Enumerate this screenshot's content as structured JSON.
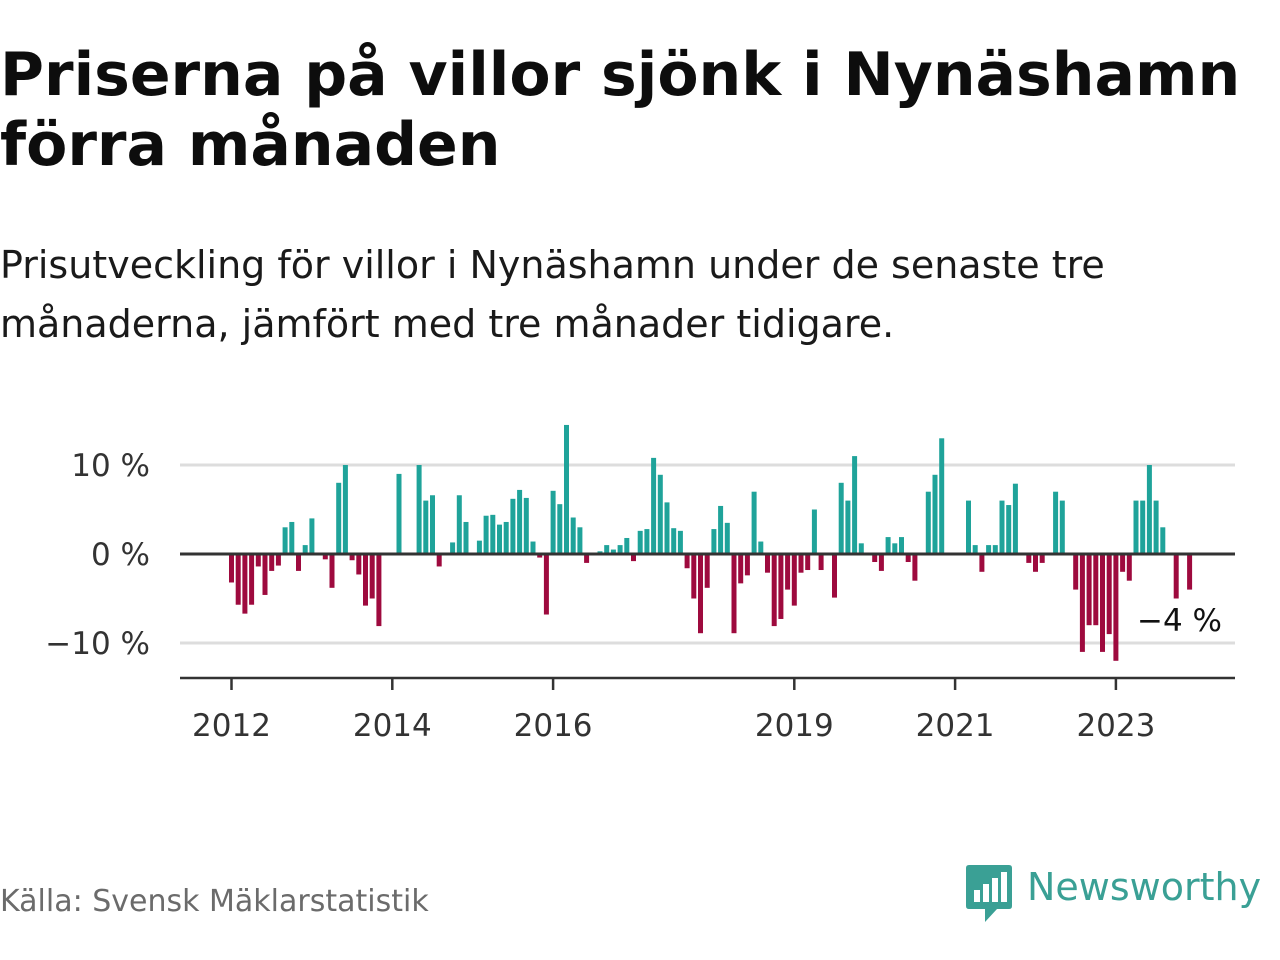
{
  "title": "Priserna på villor sjönk i Nynäshamn förra månaden",
  "subtitle": "Prisutveckling för villor i Nynäshamn under de senaste tre månaderna, jämfört med tre månader tidigare.",
  "source": "Källa: Svensk Mäklarstatistik",
  "brand": {
    "name": "Newsworthy",
    "logo_icon": "newsworthy-bar-chart-logo-icon"
  },
  "colors": {
    "positive": "#1fa39a",
    "negative": "#9e0a3e",
    "grid": "#dddddd",
    "axis": "#333333",
    "brand": "#3aa095"
  },
  "chart_data": {
    "type": "bar",
    "unit": "%",
    "x_start": "2012-01",
    "y_ticks": [
      {
        "value": 10,
        "label": "10 %"
      },
      {
        "value": 0,
        "label": "0 %"
      },
      {
        "value": -10,
        "label": "−10 %"
      }
    ],
    "ylim": [
      -14,
      14.5
    ],
    "x_ticks": [
      {
        "label": "2012",
        "index": 0
      },
      {
        "label": "2014",
        "index": 24
      },
      {
        "label": "2016",
        "index": 48
      },
      {
        "label": "2019",
        "index": 84
      },
      {
        "label": "2021",
        "index": 108
      },
      {
        "label": "2023",
        "index": 132
      }
    ],
    "last_label": "−4 %",
    "values": [
      -3.2,
      -5.7,
      -6.7,
      -5.7,
      -1.4,
      -4.6,
      -1.9,
      -1.3,
      3,
      3.6,
      -1.9,
      1,
      4,
      0,
      -0.6,
      -3.8,
      8,
      10,
      -0.7,
      -2.3,
      -5.8,
      -5,
      -8.1,
      0,
      0,
      9,
      0,
      0,
      10,
      6,
      6.6,
      -1.4,
      0,
      1.3,
      6.6,
      3.6,
      0,
      1.5,
      4.3,
      4.4,
      3.3,
      3.6,
      6.2,
      7.2,
      6.3,
      1.4,
      -0.4,
      -6.8,
      7.1,
      5.6,
      14.5,
      4.1,
      3,
      -1,
      0,
      0.3,
      1,
      0.5,
      1,
      1.8,
      -0.8,
      2.6,
      2.8,
      10.8,
      8.9,
      5.8,
      2.9,
      2.6,
      -1.6,
      -5,
      -8.9,
      -3.8,
      2.8,
      5.4,
      3.5,
      -8.9,
      -3.3,
      -2.4,
      7,
      1.4,
      -2.1,
      -8.1,
      -7.3,
      -4,
      -5.8,
      -2.1,
      -1.8,
      5,
      -1.8,
      0,
      -4.9,
      8,
      6,
      11,
      1.2,
      0,
      -0.9,
      -1.9,
      1.9,
      1.2,
      1.9,
      -0.9,
      -3,
      0,
      7,
      8.9,
      13,
      0,
      0,
      0,
      6,
      1,
      -2,
      1,
      1,
      6,
      5.5,
      7.9,
      0,
      -1,
      -2,
      -1,
      0,
      7,
      6,
      0,
      -4,
      -11,
      -8,
      -8,
      -11,
      -9,
      -12,
      -2,
      -3,
      6,
      6,
      10,
      6,
      3,
      0,
      -5,
      0,
      -4
    ]
  }
}
